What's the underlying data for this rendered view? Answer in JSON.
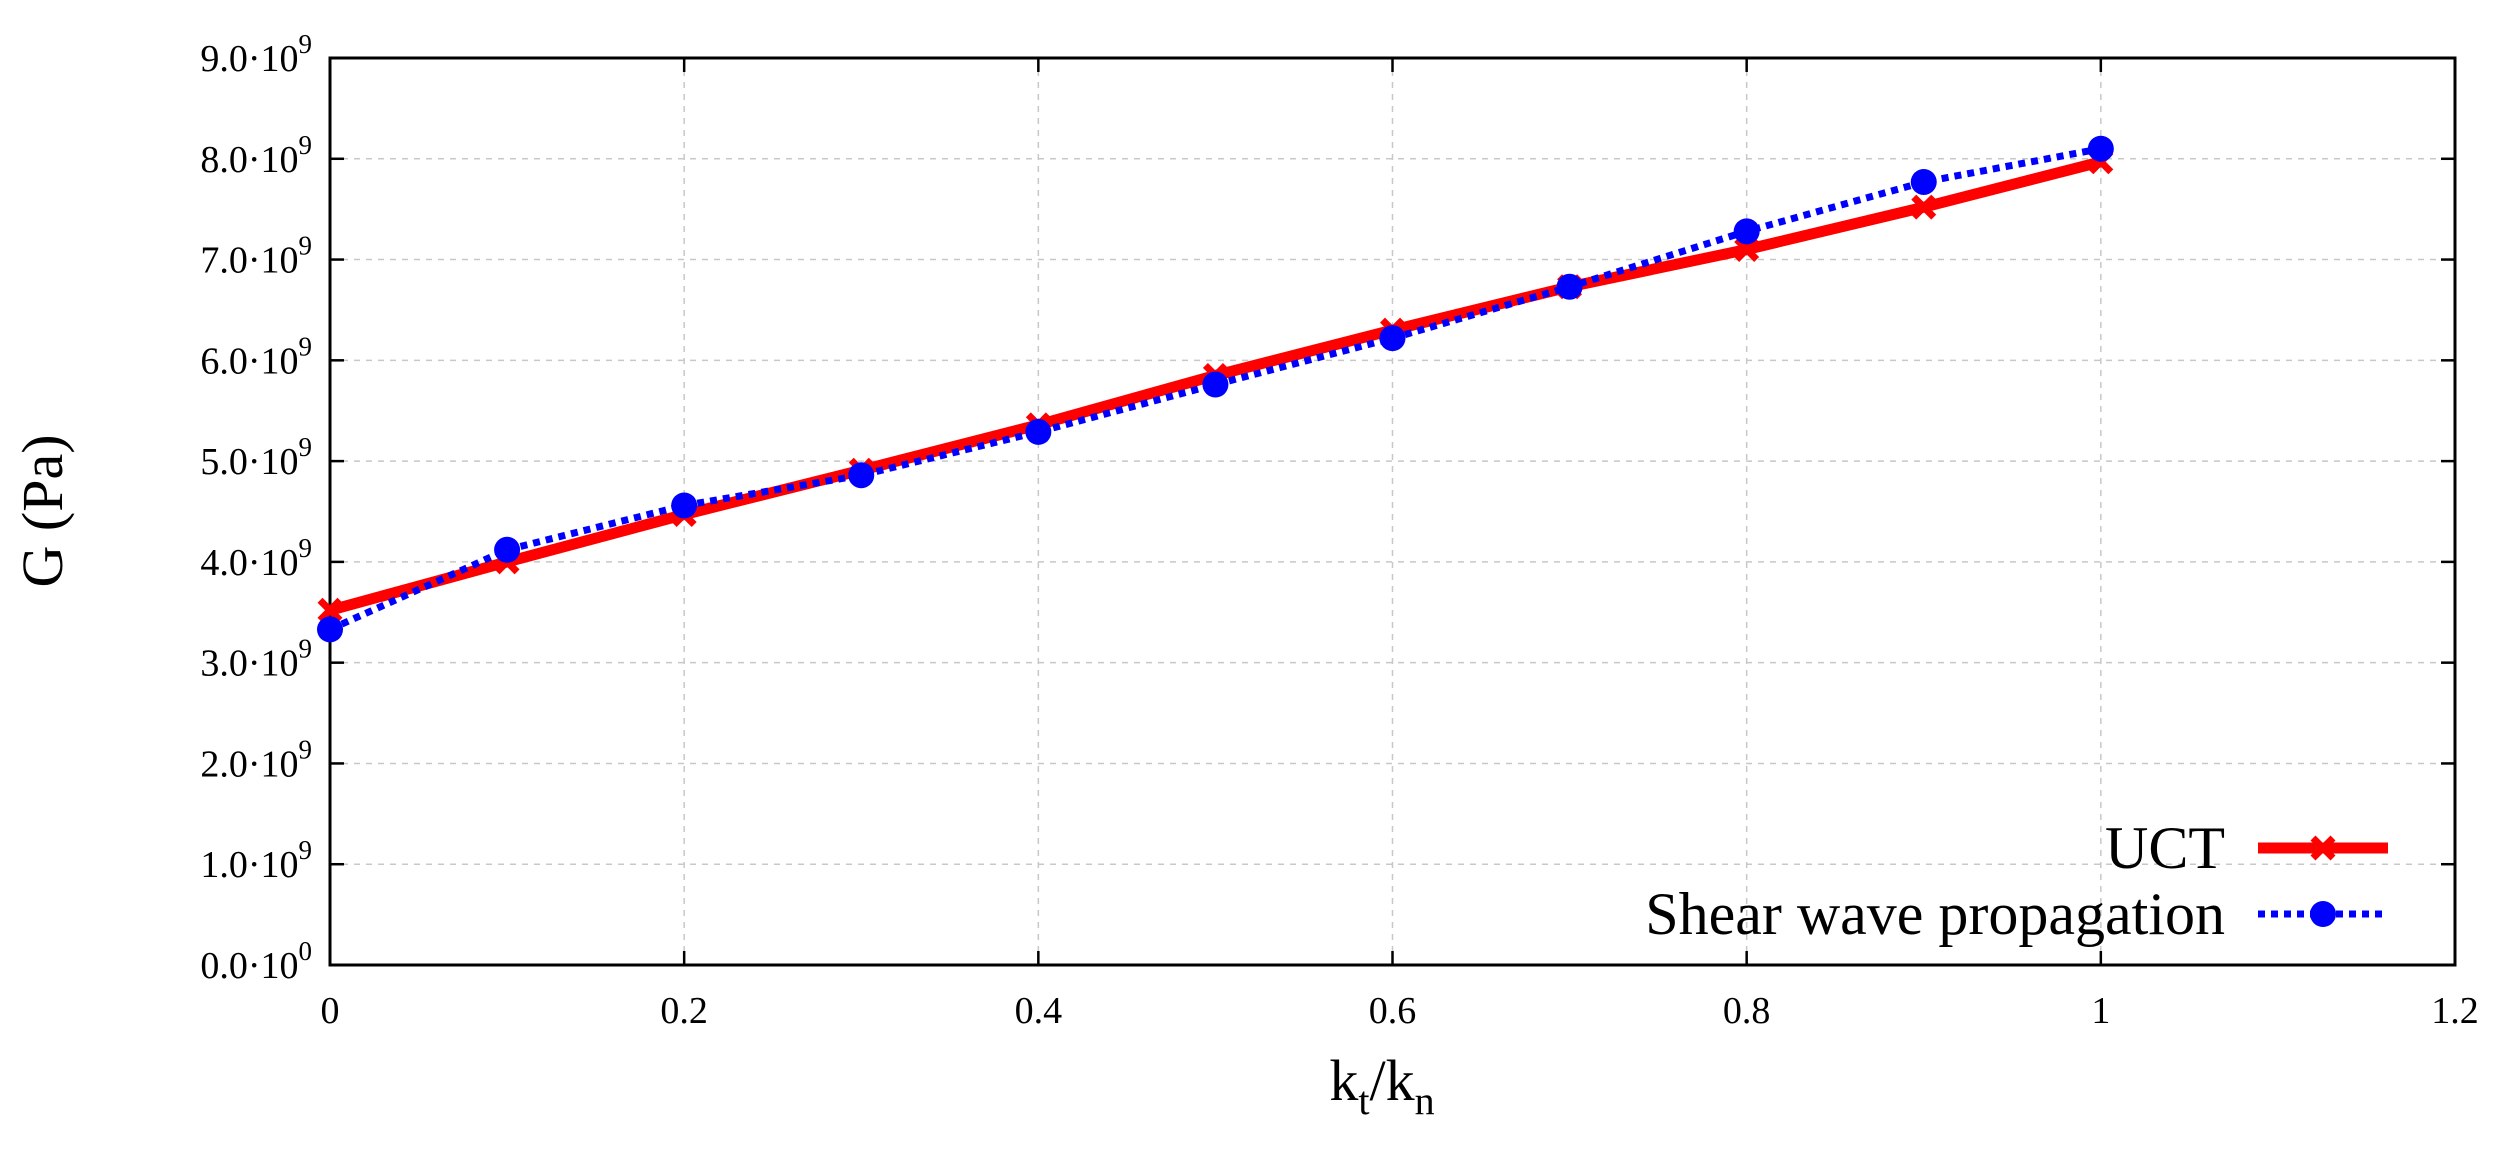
{
  "chart_data": {
    "type": "line",
    "title": "",
    "xlabel": {
      "base": "k",
      "sub1": "t",
      "sep": "/",
      "base2": "k",
      "sub2": "n"
    },
    "ylabel": "G (Pa)",
    "xlim": [
      0,
      1.2
    ],
    "ylim": [
      0,
      9000000000.0
    ],
    "xticks": [
      {
        "value": 0,
        "label": "0"
      },
      {
        "value": 0.2,
        "label": "0.2"
      },
      {
        "value": 0.4,
        "label": "0.4"
      },
      {
        "value": 0.6,
        "label": "0.6"
      },
      {
        "value": 0.8,
        "label": "0.8"
      },
      {
        "value": 1.0,
        "label": "1"
      },
      {
        "value": 1.2,
        "label": "1.2"
      }
    ],
    "yticks": [
      {
        "value": 0,
        "mant": "0.0·10",
        "exp": "0"
      },
      {
        "value": 1000000000.0,
        "mant": "1.0·10",
        "exp": "9"
      },
      {
        "value": 2000000000.0,
        "mant": "2.0·10",
        "exp": "9"
      },
      {
        "value": 3000000000.0,
        "mant": "3.0·10",
        "exp": "9"
      },
      {
        "value": 4000000000.0,
        "mant": "4.0·10",
        "exp": "9"
      },
      {
        "value": 5000000000.0,
        "mant": "5.0·10",
        "exp": "9"
      },
      {
        "value": 6000000000.0,
        "mant": "6.0·10",
        "exp": "9"
      },
      {
        "value": 7000000000.0,
        "mant": "7.0·10",
        "exp": "9"
      },
      {
        "value": 8000000000.0,
        "mant": "8.0·10",
        "exp": "9"
      },
      {
        "value": 9000000000.0,
        "mant": "9.0·10",
        "exp": "9"
      }
    ],
    "grid": true,
    "legend_position": "bottom-right",
    "series": [
      {
        "name": "UCT",
        "color": "#ff0000",
        "line_style": "solid",
        "marker": "x",
        "x": [
          0,
          0.1,
          0.2,
          0.3,
          0.4,
          0.5,
          0.6,
          0.7,
          0.8,
          0.9,
          1.0
        ],
        "y": [
          3520000000.0,
          4000000000.0,
          4470000000.0,
          4910000000.0,
          5360000000.0,
          5850000000.0,
          6300000000.0,
          6730000000.0,
          7100000000.0,
          7520000000.0,
          7970000000.0
        ]
      },
      {
        "name": "Shear wave propagation",
        "color": "#0000ff",
        "line_style": "dotted",
        "marker": "circle",
        "x": [
          0,
          0.1,
          0.2,
          0.3,
          0.4,
          0.5,
          0.6,
          0.7,
          0.8,
          0.9,
          1.0
        ],
        "y": [
          3330000000.0,
          4120000000.0,
          4560000000.0,
          4860000000.0,
          5290000000.0,
          5760000000.0,
          6220000000.0,
          6730000000.0,
          7280000000.0,
          7770000000.0,
          8100000000.0
        ]
      }
    ]
  }
}
